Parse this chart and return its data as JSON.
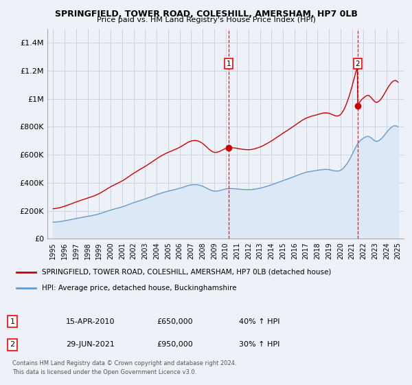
{
  "title": "SPRINGFIELD, TOWER ROAD, COLESHILL, AMERSHAM, HP7 0LB",
  "subtitle": "Price paid vs. HM Land Registry's House Price Index (HPI)",
  "background_color": "#eef2f8",
  "plot_bg_color": "#eef2f8",
  "grid_color": "#c8d4e8",
  "ylim": [
    0,
    1500000
  ],
  "yticks": [
    0,
    200000,
    400000,
    600000,
    800000,
    1000000,
    1200000,
    1400000
  ],
  "ytick_labels": [
    "£0",
    "£200K",
    "£400K",
    "£600K",
    "£800K",
    "£1M",
    "£1.2M",
    "£1.4M"
  ],
  "xlim_start": 1994.5,
  "xlim_end": 2025.5,
  "xticks": [
    1995,
    1996,
    1997,
    1998,
    1999,
    2000,
    2001,
    2002,
    2003,
    2004,
    2005,
    2006,
    2007,
    2008,
    2009,
    2010,
    2011,
    2012,
    2013,
    2014,
    2015,
    2016,
    2017,
    2018,
    2019,
    2020,
    2021,
    2022,
    2023,
    2024,
    2025
  ],
  "sale1_x": 2010.29,
  "sale1_y": 650000,
  "sale1_label": "1",
  "sale1_date": "15-APR-2010",
  "sale1_price": "£650,000",
  "sale1_hpi": "40% ↑ HPI",
  "sale2_x": 2021.49,
  "sale2_y": 950000,
  "sale2_label": "2",
  "sale2_date": "29-JUN-2021",
  "sale2_price": "£950,000",
  "sale2_hpi": "30% ↑ HPI",
  "red_line_color": "#cc0000",
  "blue_line_color": "#6699cc",
  "blue_fill_color": "#dce8f5",
  "legend_label_red": "SPRINGFIELD, TOWER ROAD, COLESHILL, AMERSHAM, HP7 0LB (detached house)",
  "legend_label_blue": "HPI: Average price, detached house, Buckinghamshire",
  "footer1": "Contains HM Land Registry data © Crown copyright and database right 2024.",
  "footer2": "This data is licensed under the Open Government Licence v3.0."
}
